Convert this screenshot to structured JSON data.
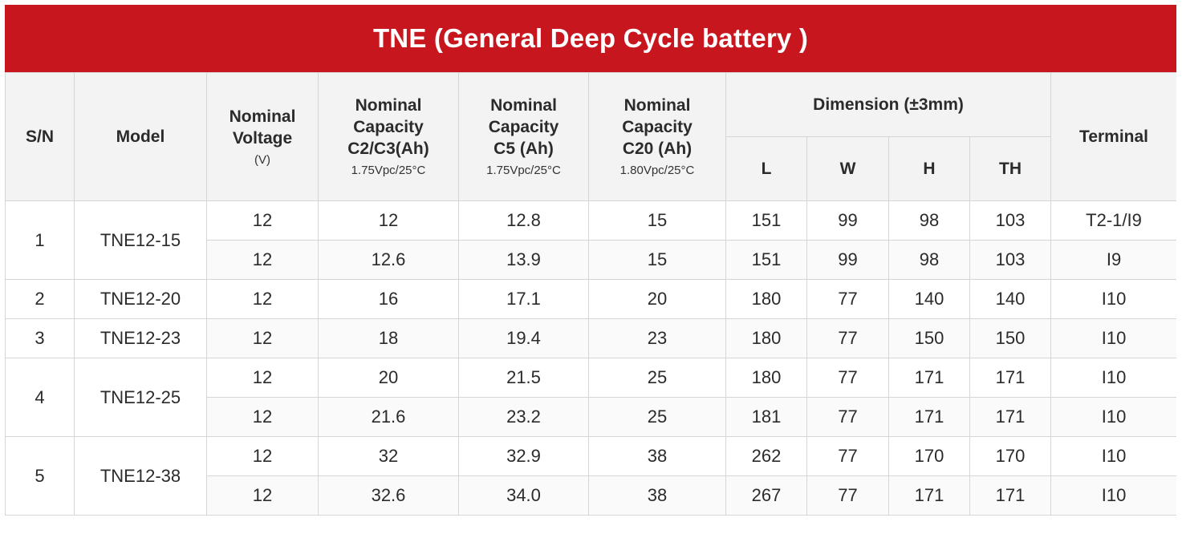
{
  "title": "TNE (General Deep Cycle battery )",
  "headers": {
    "sn": "S/N",
    "model": "Model",
    "voltage": {
      "label1": "Nominal",
      "label2": "Voltage",
      "sub": "(V)"
    },
    "c2c3": {
      "label1": "Nominal",
      "label2": "Capacity",
      "label3": "C2/C3(Ah)",
      "sub": "1.75Vpc/25°C"
    },
    "c5": {
      "label1": "Nominal",
      "label2": "Capacity",
      "label3": "C5 (Ah)",
      "sub": "1.75Vpc/25°C"
    },
    "c20": {
      "label1": "Nominal",
      "label2": "Capacity",
      "label3": "C20 (Ah)",
      "sub": "1.80Vpc/25°C"
    },
    "dimension": "Dimension (±3mm)",
    "l": "L",
    "w": "W",
    "h": "H",
    "th": "TH",
    "terminal": "Terminal"
  },
  "groups": [
    {
      "sn": "1",
      "model": "TNE12-15",
      "rows": [
        {
          "voltage": "12",
          "c2c3": "12",
          "c5": "12.8",
          "c20": "15",
          "l": "151",
          "w": "99",
          "h": "98",
          "th": "103",
          "terminal": "T2-1/I9"
        },
        {
          "voltage": "12",
          "c2c3": "12.6",
          "c5": "13.9",
          "c20": "15",
          "l": "151",
          "w": "99",
          "h": "98",
          "th": "103",
          "terminal": "I9"
        }
      ]
    },
    {
      "sn": "2",
      "model": "TNE12-20",
      "rows": [
        {
          "voltage": "12",
          "c2c3": "16",
          "c5": "17.1",
          "c20": "20",
          "l": "180",
          "w": "77",
          "h": "140",
          "th": "140",
          "terminal": "I10"
        }
      ]
    },
    {
      "sn": "3",
      "model": "TNE12-23",
      "rows": [
        {
          "voltage": "12",
          "c2c3": "18",
          "c5": "19.4",
          "c20": "23",
          "l": "180",
          "w": "77",
          "h": "150",
          "th": "150",
          "terminal": "I10"
        }
      ]
    },
    {
      "sn": "4",
      "model": "TNE12-25",
      "rows": [
        {
          "voltage": "12",
          "c2c3": "20",
          "c5": "21.5",
          "c20": "25",
          "l": "180",
          "w": "77",
          "h": "171",
          "th": "171",
          "terminal": "I10"
        },
        {
          "voltage": "12",
          "c2c3": "21.6",
          "c5": "23.2",
          "c20": "25",
          "l": "181",
          "w": "77",
          "h": "171",
          "th": "171",
          "terminal": "I10"
        }
      ]
    },
    {
      "sn": "5",
      "model": "TNE12-38",
      "rows": [
        {
          "voltage": "12",
          "c2c3": "32",
          "c5": "32.9",
          "c20": "38",
          "l": "262",
          "w": "77",
          "h": "170",
          "th": "170",
          "terminal": "I10"
        },
        {
          "voltage": "12",
          "c2c3": "32.6",
          "c5": "34.0",
          "c20": "38",
          "l": "267",
          "w": "77",
          "h": "171",
          "th": "171",
          "terminal": "I10"
        }
      ]
    }
  ],
  "colors": {
    "title_bg": "#c8161e",
    "header_bg": "#f3f3f3",
    "border": "#d6d6d6"
  }
}
